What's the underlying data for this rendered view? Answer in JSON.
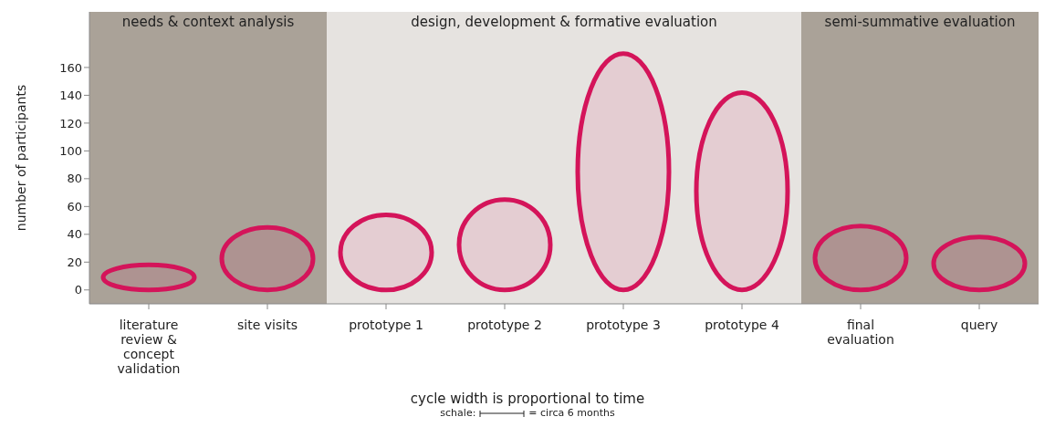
{
  "chart_data": {
    "type": "bar",
    "ylabel": "number of participants",
    "categories": [
      "literature review & concept validation",
      "site visits",
      "prototype 1",
      "prototype 2",
      "prototype 3",
      "prototype 4",
      "final evaluation",
      "query"
    ],
    "values": [
      18,
      45,
      54,
      65,
      170,
      142,
      46,
      38
    ],
    "color": "#d4145a",
    "ylim": [
      -10,
      200
    ],
    "yticks": [
      0,
      20,
      40,
      60,
      80,
      100,
      120,
      140,
      160
    ],
    "bands": [
      {
        "axis": "x",
        "from": "literature review & concept validation",
        "to": "site visits",
        "label": "needs & context analysis",
        "color": "#aaa298"
      },
      {
        "axis": "x",
        "from": "prototype 1",
        "to": "prototype 4",
        "label": "design, development & formative evaluation",
        "color": "#e6e3e0"
      },
      {
        "axis": "x",
        "from": "final evaluation",
        "to": "query",
        "label": "semi-summative evaluation",
        "color": "#aaa298"
      }
    ],
    "annotations": [
      "cycle width is proportional to time",
      "schale:",
      "= circa 6 months"
    ]
  }
}
